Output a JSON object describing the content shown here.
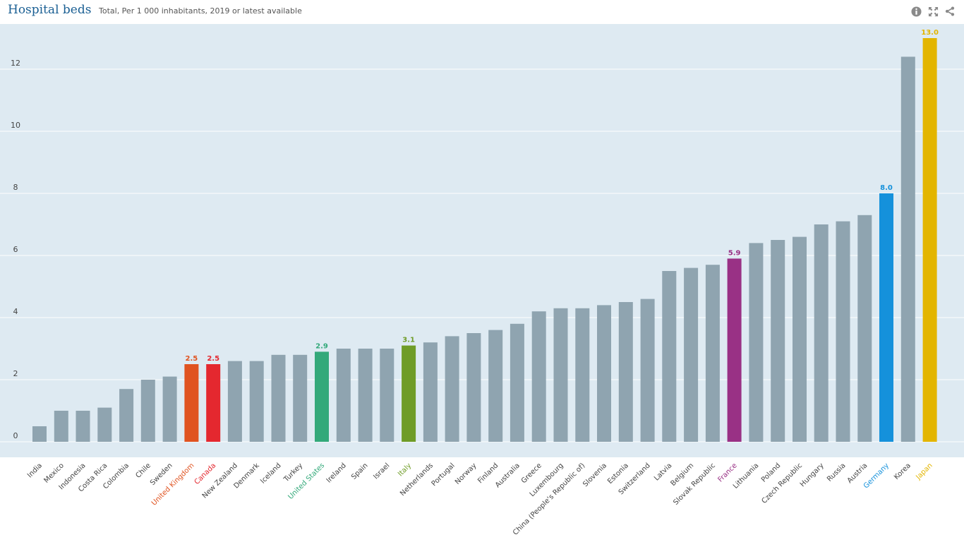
{
  "header": {
    "title": "Hospital beds",
    "subtitle": "Total, Per 1 000 inhabitants, 2019 or latest available",
    "icons": [
      "info-icon",
      "fullscreen-icon",
      "share-icon"
    ]
  },
  "colors": {
    "default_bar": "#8fa4b0",
    "background": "#deeaf2",
    "title": "#1a5f93"
  },
  "chart_data": {
    "type": "bar",
    "title": "Hospital beds",
    "subtitle": "Total, Per 1 000 inhabitants, 2019 or latest available",
    "xlabel": "",
    "ylabel": "",
    "ylim": [
      0,
      13.5
    ],
    "yticks": [
      "0",
      "2",
      "4",
      "6",
      "8",
      "10",
      "12"
    ],
    "ytick_values": [
      0,
      2,
      4,
      6,
      8,
      10,
      12
    ],
    "grid": true,
    "categories": [
      "India",
      "Mexico",
      "Indonesia",
      "Costa Rica",
      "Colombia",
      "Chile",
      "Sweden",
      "United Kingdom",
      "Canada",
      "New Zealand",
      "Denmark",
      "Iceland",
      "Turkey",
      "United States",
      "Ireland",
      "Spain",
      "Israel",
      "Italy",
      "Netherlands",
      "Portugal",
      "Norway",
      "Finland",
      "Australia",
      "Greece",
      "Luxembourg",
      "China (People's Republic of)",
      "Slovenia",
      "Estonia",
      "Switzerland",
      "Latvia",
      "Belgium",
      "Slovak Republic",
      "France",
      "Lithuania",
      "Poland",
      "Czech Republic",
      "Hungary",
      "Russia",
      "Austria",
      "Germany",
      "Korea",
      "Japan"
    ],
    "values": [
      0.5,
      1.0,
      1.0,
      1.1,
      1.7,
      2.0,
      2.1,
      2.5,
      2.5,
      2.6,
      2.6,
      2.8,
      2.8,
      2.9,
      3.0,
      3.0,
      3.0,
      3.1,
      3.2,
      3.4,
      3.5,
      3.6,
      3.8,
      4.2,
      4.3,
      4.3,
      4.4,
      4.5,
      4.6,
      5.5,
      5.6,
      5.7,
      5.9,
      6.4,
      6.5,
      6.6,
      7.0,
      7.1,
      7.3,
      8.0,
      12.4,
      13.0
    ],
    "highlights": {
      "United Kingdom": {
        "color": "#e05320",
        "label": "2.5"
      },
      "Canada": {
        "color": "#e4282f",
        "label": "2.5"
      },
      "United States": {
        "color": "#33a97a",
        "label": "2.9"
      },
      "Italy": {
        "color": "#6f9c27",
        "label": "3.1"
      },
      "France": {
        "color": "#993185",
        "label": "5.9"
      },
      "Germany": {
        "color": "#1591db",
        "label": "8.0"
      },
      "Japan": {
        "color": "#e3b500",
        "label": "13.0"
      }
    }
  }
}
